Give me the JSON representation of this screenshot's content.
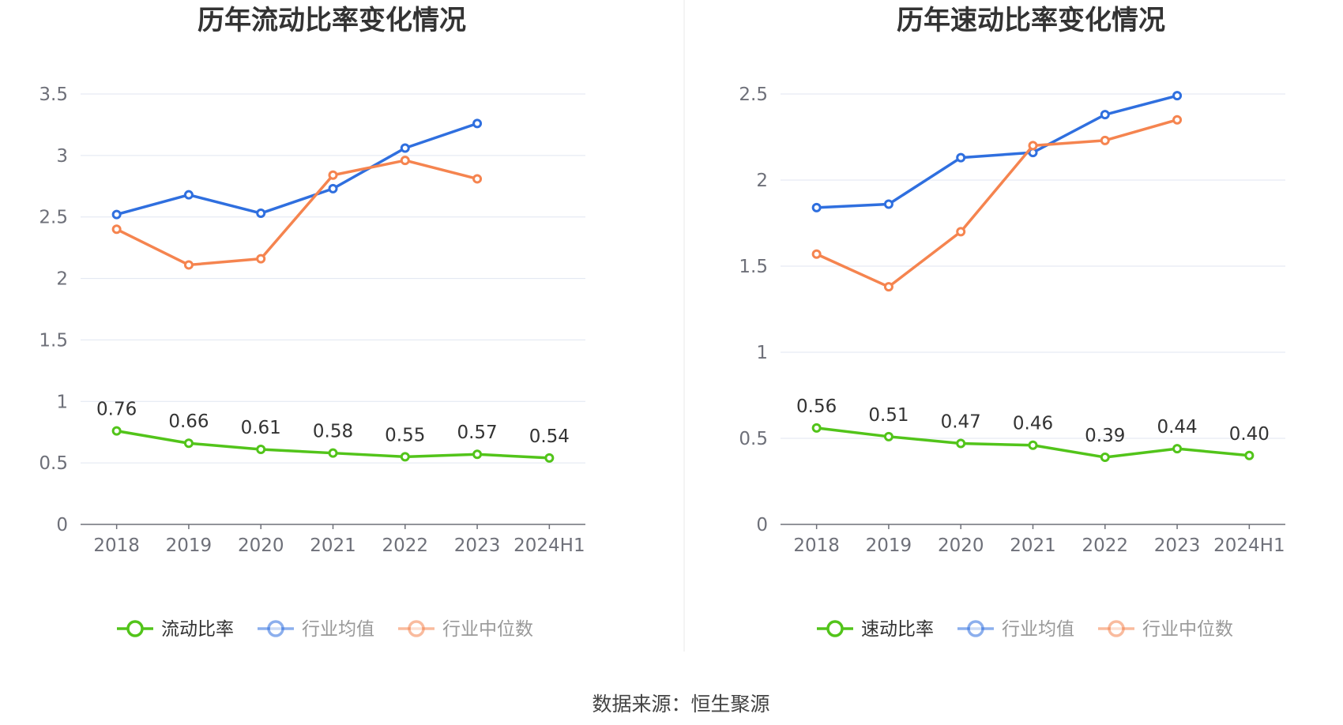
{
  "source": "数据来源：恒生聚源",
  "chart_data": [
    {
      "type": "line",
      "title": "历年流动比率变化情况",
      "categories": [
        "2018",
        "2019",
        "2020",
        "2021",
        "2022",
        "2023",
        "2024H1"
      ],
      "ylim": [
        0,
        3.5
      ],
      "yticks": [
        "0",
        "0.5",
        "1",
        "1.5",
        "2",
        "2.5",
        "3",
        "3.5"
      ],
      "grid": true,
      "legend_position": "bottom",
      "series": [
        {
          "name": "流动比率",
          "color": "#52c41a",
          "values": [
            0.76,
            0.66,
            0.61,
            0.58,
            0.55,
            0.57,
            0.54
          ],
          "labels": [
            "0.76",
            "0.66",
            "0.61",
            "0.58",
            "0.55",
            "0.57",
            "0.54"
          ]
        },
        {
          "name": "行业均值",
          "color": "#2f6fdf",
          "values": [
            2.52,
            2.68,
            2.53,
            2.73,
            3.06,
            3.26,
            null
          ]
        },
        {
          "name": "行业中位数",
          "color": "#f5844f",
          "values": [
            2.4,
            2.11,
            2.16,
            2.84,
            2.96,
            2.81,
            null
          ]
        }
      ]
    },
    {
      "type": "line",
      "title": "历年速动比率变化情况",
      "categories": [
        "2018",
        "2019",
        "2020",
        "2021",
        "2022",
        "2023",
        "2024H1"
      ],
      "ylim": [
        0,
        2.5
      ],
      "yticks": [
        "0",
        "0.5",
        "1",
        "1.5",
        "2",
        "2.5"
      ],
      "grid": true,
      "legend_position": "bottom",
      "series": [
        {
          "name": "速动比率",
          "color": "#52c41a",
          "values": [
            0.56,
            0.51,
            0.47,
            0.46,
            0.39,
            0.44,
            0.4
          ],
          "labels": [
            "0.56",
            "0.51",
            "0.47",
            "0.46",
            "0.39",
            "0.44",
            "0.40"
          ]
        },
        {
          "name": "行业均值",
          "color": "#2f6fdf",
          "values": [
            1.84,
            1.86,
            2.13,
            2.16,
            2.38,
            2.49,
            null
          ]
        },
        {
          "name": "行业中位数",
          "color": "#f5844f",
          "values": [
            1.57,
            1.38,
            1.7,
            2.2,
            2.23,
            2.35,
            null
          ]
        }
      ]
    }
  ]
}
